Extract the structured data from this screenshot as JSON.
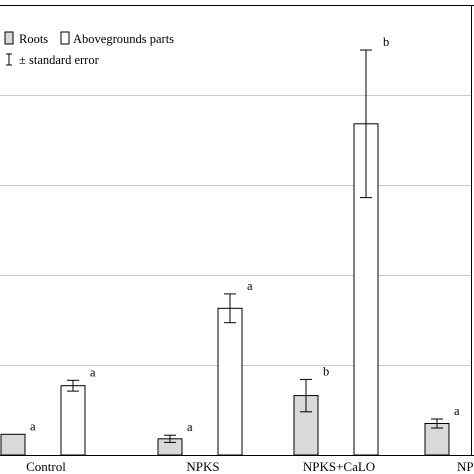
{
  "chart_data": {
    "type": "bar",
    "title": "",
    "xlabel": "",
    "ylabel": "",
    "categories": [
      "Control",
      "NPKS",
      "NPKS+CaLO",
      "NPK"
    ],
    "ylim": [
      0,
      5
    ],
    "grid": true,
    "legend_position": "top-left",
    "series": [
      {
        "name": "Roots",
        "color": "#d9d9d9",
        "values": [
          0.23,
          0.18,
          0.66,
          0.35
        ],
        "errors": [
          0.0,
          0.04,
          0.18,
          0.05
        ],
        "labels": [
          "a",
          "a",
          "b",
          "a"
        ]
      },
      {
        "name": "Abovegrounds parts",
        "color": "#ffffff",
        "values": [
          0.77,
          1.63,
          3.68,
          null
        ],
        "errors": [
          0.06,
          0.16,
          0.82,
          null
        ],
        "labels": [
          "a",
          "a",
          "b",
          ""
        ]
      }
    ],
    "legend_extra": "± standard error"
  }
}
